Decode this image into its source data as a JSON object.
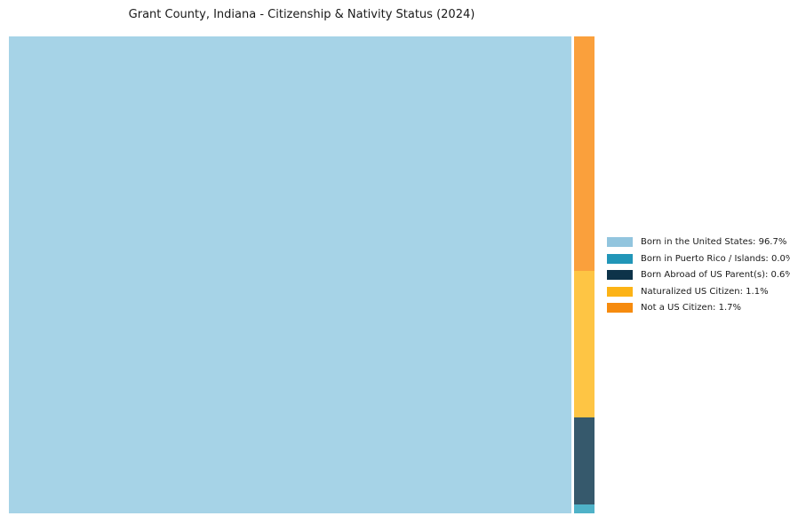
{
  "title": "Grant County, Indiana - Citizenship & Nativity Status (2024)",
  "chart_data": {
    "type": "treemap",
    "title": "Grant County, Indiana - Citizenship & Nativity Status (2024)",
    "unit": "%",
    "categories": [
      "Born in the United States",
      "Born in Puerto Rico / Islands",
      "Born Abroad of US Parent(s)",
      "Naturalized US Citizen",
      "Not a US Citizen"
    ],
    "values": [
      96.7,
      0.0,
      0.6,
      1.1,
      1.7
    ],
    "legend_labels": [
      "Born in the United States: 96.7%",
      "Born in Puerto Rico / Islands: 0.0%",
      "Born Abroad of US Parent(s): 0.6%",
      "Naturalized US Citizen: 1.1%",
      "Not a US Citizen: 1.7%"
    ],
    "colors": [
      "#92c5de",
      "#2196b8",
      "#0d3349",
      "#fcb316",
      "#f68b0e"
    ],
    "fill_colors": [
      "#a6d3e7",
      "#4fb2c8",
      "#36596c",
      "#fec544",
      "#faa03c"
    ],
    "legend_position": "right",
    "layout_note": "Single large US-born block on left; right column stacked top-to-bottom: Not a US Citizen, Naturalized US Citizen, Born Abroad of US Parent(s), Born in Puerto Rico / Islands"
  },
  "treemap": {
    "segments": [
      {
        "name": "born-in-us",
        "label": "Born in the United States",
        "value_pct": 96.7,
        "color": "#a6d3e7"
      },
      {
        "name": "not-us-citizen",
        "label": "Not a US Citizen",
        "value_pct": 1.7,
        "color": "#faa03c"
      },
      {
        "name": "naturalized",
        "label": "Naturalized US Citizen",
        "value_pct": 1.1,
        "color": "#fec544"
      },
      {
        "name": "born-abroad",
        "label": "Born Abroad of US Parent(s)",
        "value_pct": 0.6,
        "color": "#36596c"
      },
      {
        "name": "puerto-rico",
        "label": "Born in Puerto Rico / Islands",
        "value_pct": 0.0,
        "color": "#4fb2c8"
      }
    ]
  },
  "legend": {
    "items": [
      {
        "label": "Born in the United States: 96.7%",
        "color": "#92c5de"
      },
      {
        "label": "Born in Puerto Rico / Islands: 0.0%",
        "color": "#2196b8"
      },
      {
        "label": "Born Abroad of US Parent(s): 0.6%",
        "color": "#0d3349"
      },
      {
        "label": "Naturalized US Citizen: 1.1%",
        "color": "#fcb316"
      },
      {
        "label": "Not a US Citizen: 1.7%",
        "color": "#f68b0e"
      }
    ]
  }
}
